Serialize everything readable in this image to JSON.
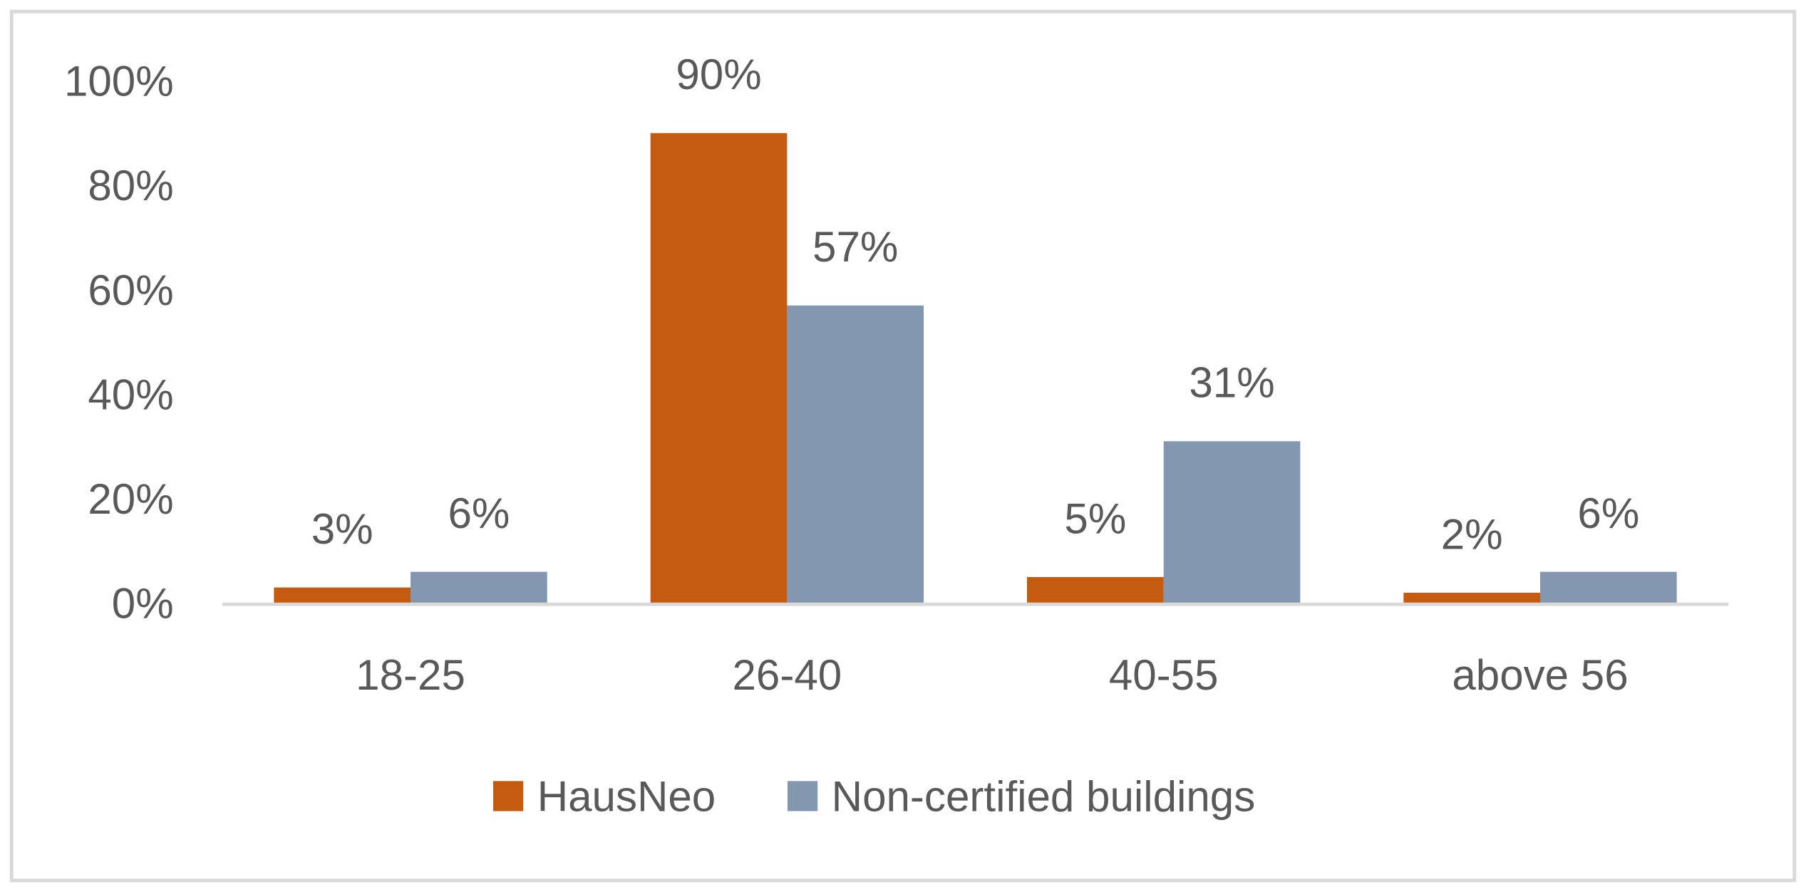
{
  "chart_data": {
    "type": "bar",
    "title": "",
    "xlabel": "",
    "ylabel": "",
    "categories": [
      "18-25",
      "26-40",
      "40-55",
      "above 56"
    ],
    "series": [
      {
        "name": "HausNeo",
        "values": [
          3,
          90,
          5,
          2
        ],
        "labels": [
          "3%",
          "90%",
          "5%",
          "2%"
        ],
        "color": "#C55A11"
      },
      {
        "name": "Non-certified buildings",
        "values": [
          6,
          57,
          31,
          6
        ],
        "labels": [
          "6%",
          "57%",
          "31%",
          "6%"
        ],
        "color": "#8497B0"
      }
    ],
    "ylim": [
      0,
      100
    ],
    "yticks": [
      "0%",
      "20%",
      "40%",
      "60%",
      "80%",
      "100%"
    ],
    "grid": false,
    "legend_position": "bottom"
  }
}
